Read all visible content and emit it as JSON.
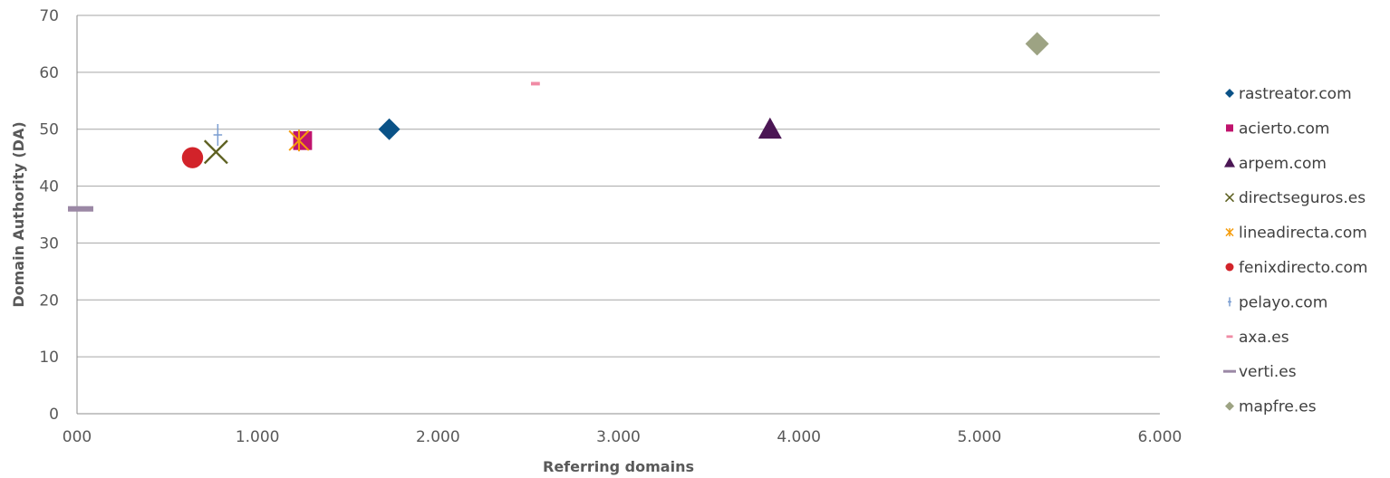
{
  "chart_data": {
    "type": "scatter",
    "title": "",
    "xlabel": "Referring domains",
    "ylabel": "Domain Authority (DA)",
    "xlim": [
      0,
      6000
    ],
    "ylim": [
      0,
      70
    ],
    "x_ticks": [
      0,
      1000,
      2000,
      3000,
      4000,
      5000,
      6000
    ],
    "x_tick_labels": [
      "000",
      "1.000",
      "2.000",
      "3.000",
      "4.000",
      "5.000",
      "6.000"
    ],
    "y_ticks": [
      0,
      10,
      20,
      30,
      40,
      50,
      60,
      70
    ],
    "y_tick_labels": [
      "0",
      "10",
      "20",
      "30",
      "40",
      "50",
      "60",
      "70"
    ],
    "grid": "horizontal",
    "legend_position": "right",
    "series": [
      {
        "name": "rastreator.com",
        "marker": "diamond",
        "color": "#0a5287",
        "points": [
          {
            "x": 1730,
            "y": 50
          }
        ]
      },
      {
        "name": "acierto.com",
        "marker": "square",
        "color": "#c0136d",
        "points": [
          {
            "x": 1250,
            "y": 48
          }
        ]
      },
      {
        "name": "arpem.com",
        "marker": "triangle",
        "color": "#4b1654",
        "points": [
          {
            "x": 3840,
            "y": 50
          }
        ]
      },
      {
        "name": "directseguros.es",
        "marker": "x",
        "color": "#5d6020",
        "points": [
          {
            "x": 770,
            "y": 46
          }
        ]
      },
      {
        "name": "lineadirecta.com",
        "marker": "star",
        "color": "#f59c0b",
        "points": [
          {
            "x": 1230,
            "y": 48
          }
        ]
      },
      {
        "name": "fenixdirecto.com",
        "marker": "circle",
        "color": "#d2232a",
        "points": [
          {
            "x": 640,
            "y": 45
          }
        ]
      },
      {
        "name": "pelayo.com",
        "marker": "plus",
        "color": "#7a9dd1",
        "points": [
          {
            "x": 780,
            "y": 49
          }
        ]
      },
      {
        "name": "axa.es",
        "marker": "dash",
        "color": "#f08ba5",
        "points": [
          {
            "x": 2540,
            "y": 58
          }
        ]
      },
      {
        "name": "verti.es",
        "marker": "bar",
        "color": "#9b88a5",
        "points": [
          {
            "x": 20,
            "y": 36
          }
        ]
      },
      {
        "name": "mapfre.es",
        "marker": "diamond",
        "color": "#9da383",
        "points": [
          {
            "x": 5320,
            "y": 65
          }
        ]
      }
    ]
  }
}
